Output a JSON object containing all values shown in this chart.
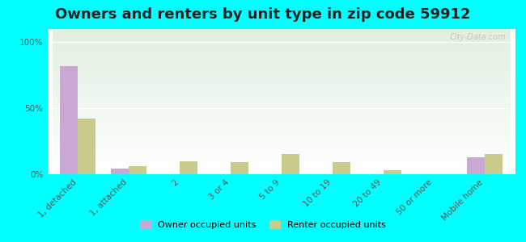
{
  "title": "Owners and renters by unit type in zip code 59912",
  "categories": [
    "1, detached",
    "1, attached",
    "2",
    "3 or 4",
    "5 to 9",
    "10 to 19",
    "20 to 49",
    "50 or more",
    "Mobile home"
  ],
  "owner_values": [
    82,
    4,
    0,
    0,
    0,
    0,
    0,
    0,
    13
  ],
  "renter_values": [
    42,
    6,
    10,
    9,
    15,
    9,
    3,
    0,
    15
  ],
  "owner_color": "#c9a8d4",
  "renter_color": "#c8cb8a",
  "background_color": "#00ffff",
  "yticks": [
    0,
    50,
    100
  ],
  "ylim": [
    0,
    110
  ],
  "watermark": "City-Data.com",
  "legend_owner": "Owner occupied units",
  "legend_renter": "Renter occupied units",
  "title_fontsize": 13,
  "tick_fontsize": 7.5,
  "bar_width": 0.35
}
